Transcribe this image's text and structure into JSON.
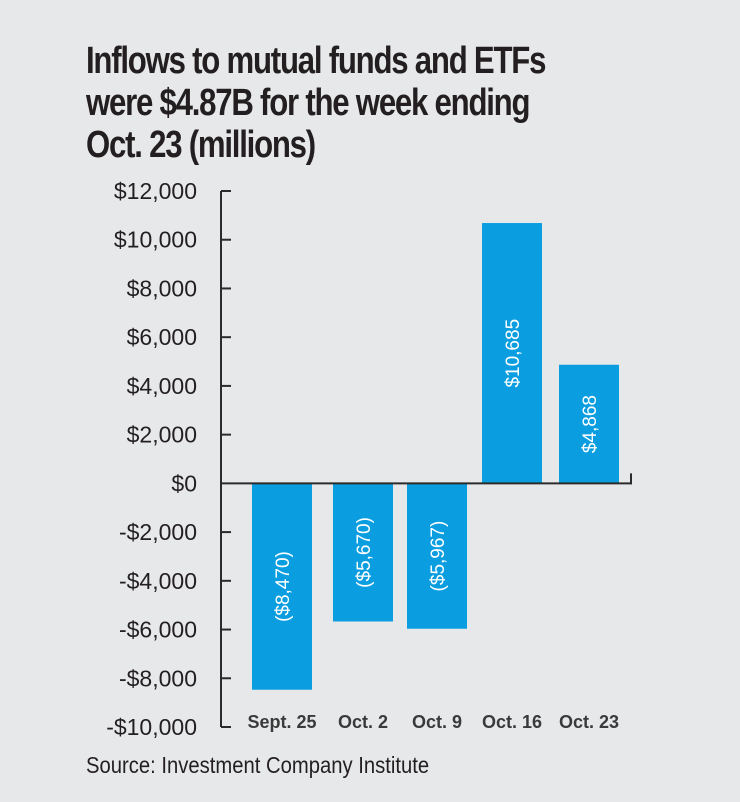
{
  "chart_data": {
    "type": "bar",
    "title": "Inflows to mutual funds and ETFs were $4.87B for the week ending Oct. 23 (millions)",
    "title_lines": [
      "Inflows to mutual funds and ETFs",
      "were $4.87B for the week ending",
      "Oct. 23 (millions)"
    ],
    "categories": [
      "Sept. 25",
      "Oct. 2",
      "Oct. 9",
      "Oct. 16",
      "Oct. 23"
    ],
    "values": [
      -8470,
      -5670,
      -5967,
      10685,
      4868
    ],
    "data_labels": [
      "($8,470)",
      "($5,670)",
      "($5,967)",
      "$10,685",
      "$4,868"
    ],
    "xlabel": "",
    "ylabel": "",
    "ylim": [
      -10000,
      12000
    ],
    "yticks": [
      12000,
      10000,
      8000,
      6000,
      4000,
      2000,
      0,
      -2000,
      -4000,
      -6000,
      -8000,
      -10000
    ],
    "ytick_labels": [
      "$12,000",
      "$10,000",
      "$8,000",
      "$6,000",
      "$4,000",
      "$2,000",
      "$0",
      "-$2,000",
      "-$4,000",
      "-$6,000",
      "-$8,000",
      "-$10,000"
    ],
    "grid": false,
    "legend": "none",
    "bar_color": "#0a9ee0",
    "source": "Source: Investment Company Institute"
  }
}
